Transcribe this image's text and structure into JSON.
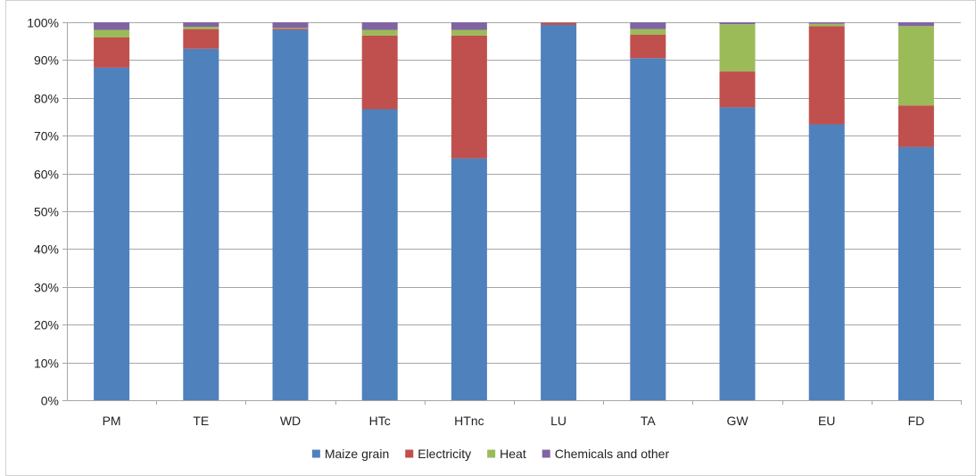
{
  "chart_data": {
    "type": "bar",
    "stacked": true,
    "percent": true,
    "categories": [
      "PM",
      "TE",
      "WD",
      "HTc",
      "HTnc",
      "LU",
      "TA",
      "GW",
      "EU",
      "FD"
    ],
    "series": [
      {
        "name": "Maize grain",
        "color": "#4F81BD",
        "values": [
          88,
          93,
          98,
          77,
          64,
          99.3,
          90.5,
          77.5,
          73,
          67
        ]
      },
      {
        "name": "Electricity",
        "color": "#C0504D",
        "values": [
          8,
          5.2,
          0.3,
          19.5,
          32.5,
          0.6,
          6.2,
          9.5,
          26,
          11
        ]
      },
      {
        "name": "Heat",
        "color": "#9BBB59",
        "values": [
          2,
          0.6,
          0.2,
          1.5,
          1.5,
          0.05,
          1.5,
          12.5,
          0.6,
          21
        ]
      },
      {
        "name": "Chemicals and other",
        "color": "#8064A2",
        "values": [
          2,
          1.2,
          1.5,
          2,
          2,
          0.05,
          1.8,
          0.5,
          0.4,
          1
        ]
      }
    ],
    "yticks": [
      "0%",
      "10%",
      "20%",
      "30%",
      "40%",
      "50%",
      "60%",
      "70%",
      "80%",
      "90%",
      "100%"
    ],
    "ylim": [
      0,
      100
    ],
    "grid": true,
    "legend": "bottom",
    "title": "",
    "xlabel": "",
    "ylabel": ""
  }
}
